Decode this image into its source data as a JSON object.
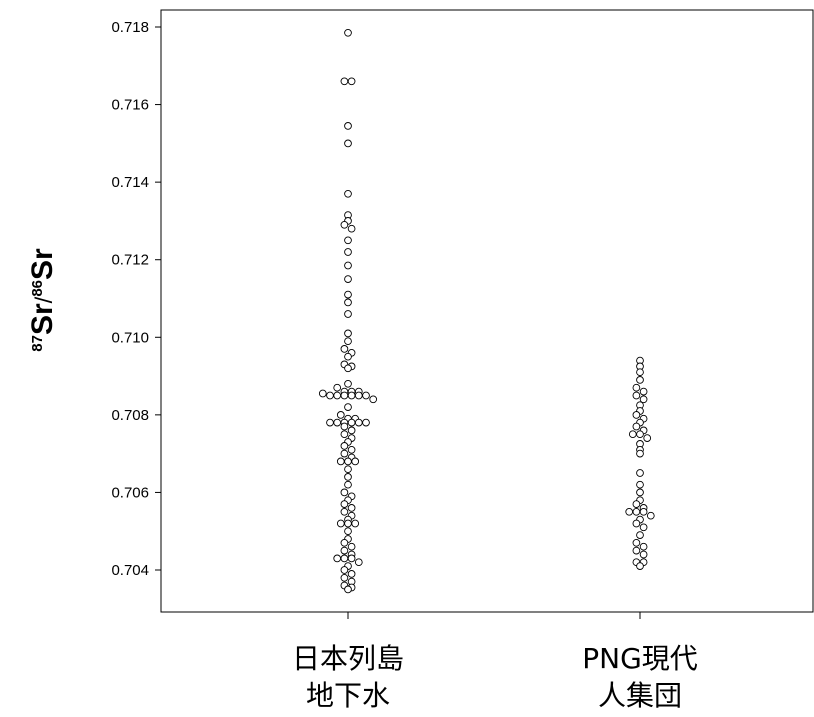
{
  "chart_data": {
    "type": "scatter",
    "ylabel": {
      "sup1": "87",
      "main1": "Sr",
      "slash": "/",
      "sup2": "86",
      "main2": "Sr"
    },
    "ylim": [
      0.7035,
      0.7182
    ],
    "yticks": [
      "0.704",
      "0.706",
      "0.708",
      "0.710",
      "0.712",
      "0.714",
      "0.716",
      "0.718"
    ],
    "grid": false,
    "categories": [
      {
        "line1": "日本列島",
        "line2": "地下水"
      },
      {
        "line1": "PNG現代",
        "line2": "人集団"
      }
    ],
    "series": [
      {
        "values": [
          0.71785,
          0.7166,
          0.7166,
          0.71545,
          0.715,
          0.7137,
          0.71315,
          0.713,
          0.7129,
          0.7128,
          0.7125,
          0.7122,
          0.71185,
          0.7115,
          0.7111,
          0.7109,
          0.7106,
          0.7101,
          0.7099,
          0.7097,
          0.7096,
          0.7095,
          0.7093,
          0.70925,
          0.7092,
          0.7088,
          0.7087,
          0.7086,
          0.7086,
          0.7086,
          0.70855,
          0.7085,
          0.7085,
          0.7085,
          0.7085,
          0.7085,
          0.7085,
          0.7084,
          0.7082,
          0.708,
          0.7079,
          0.7079,
          0.7078,
          0.7078,
          0.7078,
          0.7078,
          0.7078,
          0.7078,
          0.7077,
          0.7076,
          0.7075,
          0.7074,
          0.7073,
          0.7072,
          0.7071,
          0.707,
          0.7069,
          0.7068,
          0.7068,
          0.7068,
          0.7066,
          0.7064,
          0.7062,
          0.706,
          0.7059,
          0.7058,
          0.7057,
          0.7056,
          0.7055,
          0.7054,
          0.7053,
          0.7052,
          0.7052,
          0.7052,
          0.705,
          0.7048,
          0.7047,
          0.7046,
          0.7045,
          0.7044,
          0.7043,
          0.7043,
          0.7043,
          0.7042,
          0.7041,
          0.704,
          0.7039,
          0.7038,
          0.7037,
          0.7036,
          0.70355,
          0.7035
        ]
      },
      {
        "values": [
          0.7094,
          0.70925,
          0.7091,
          0.7089,
          0.7087,
          0.7086,
          0.7085,
          0.7084,
          0.70825,
          0.7081,
          0.708,
          0.7079,
          0.7078,
          0.7077,
          0.7076,
          0.7075,
          0.7075,
          0.7074,
          0.70725,
          0.7071,
          0.707,
          0.7065,
          0.7062,
          0.706,
          0.7058,
          0.7057,
          0.7056,
          0.7055,
          0.7055,
          0.7055,
          0.7054,
          0.7053,
          0.7052,
          0.7051,
          0.7049,
          0.7047,
          0.7046,
          0.7045,
          0.7044,
          0.7042,
          0.7042,
          0.7041
        ]
      }
    ]
  }
}
